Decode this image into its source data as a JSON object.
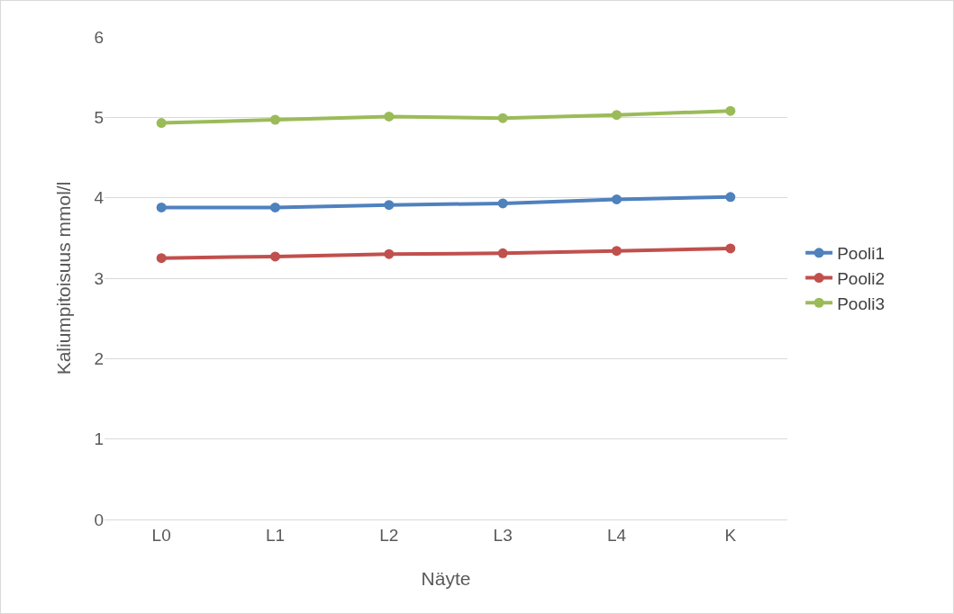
{
  "chart_data": {
    "type": "line",
    "xlabel": "Näyte",
    "ylabel": "Kaliumpitoisuus mmol/l",
    "categories": [
      "L0",
      "L1",
      "L2",
      "L3",
      "L4",
      "K"
    ],
    "series": [
      {
        "name": "Pooli1",
        "color": "#4f81bd",
        "values": [
          3.88,
          3.88,
          3.91,
          3.93,
          3.98,
          4.01
        ]
      },
      {
        "name": "Pooli2",
        "color": "#c0504d",
        "values": [
          3.25,
          3.27,
          3.3,
          3.31,
          3.34,
          3.37
        ]
      },
      {
        "name": "Pooli3",
        "color": "#9bbb59",
        "values": [
          4.93,
          4.97,
          5.01,
          4.99,
          5.03,
          5.08
        ]
      }
    ],
    "ylim": [
      0,
      6
    ],
    "yticks": [
      0,
      1,
      2,
      3,
      4,
      5,
      6
    ],
    "grid": "y",
    "legend": "right",
    "marker": "circle",
    "line_style": "solid"
  }
}
